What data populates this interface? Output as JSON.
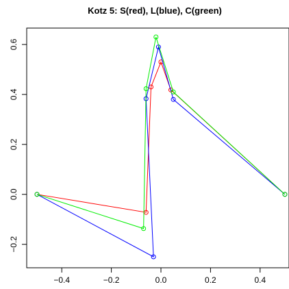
{
  "chart_data": {
    "type": "line",
    "title": "Kotz 5: S(red), L(blue), C(green)",
    "xlabel": "",
    "ylabel": "",
    "xlim": [
      -0.5,
      0.5
    ],
    "ylim": [
      -0.25,
      0.63
    ],
    "xticks": [
      -0.4,
      -0.2,
      0.0,
      0.2,
      0.4
    ],
    "xtick_labels": [
      "−0.4",
      "−0.2",
      "0.0",
      "0.2",
      "0.4"
    ],
    "yticks": [
      -0.2,
      0.0,
      0.2,
      0.4,
      0.6
    ],
    "ytick_labels": [
      "−0.2",
      "0.0",
      "0.2",
      "0.4",
      "0.6"
    ],
    "grid": false,
    "series": [
      {
        "color": "#ff0000",
        "x": [
          -0.5,
          -0.06,
          -0.04,
          0.0,
          0.04,
          0.5
        ],
        "y": [
          0.0,
          -0.072,
          0.43,
          0.53,
          0.418,
          0.0
        ]
      },
      {
        "color": "#0000ff",
        "x": [
          -0.5,
          -0.03,
          -0.06,
          -0.01,
          0.05,
          0.5
        ],
        "y": [
          0.0,
          -0.25,
          0.383,
          0.59,
          0.38,
          0.0
        ]
      },
      {
        "color": "#00ee00",
        "x": [
          -0.5,
          -0.07,
          -0.06,
          -0.02,
          0.05,
          0.5
        ],
        "y": [
          0.0,
          -0.137,
          0.423,
          0.63,
          0.41,
          0.0
        ]
      }
    ]
  }
}
